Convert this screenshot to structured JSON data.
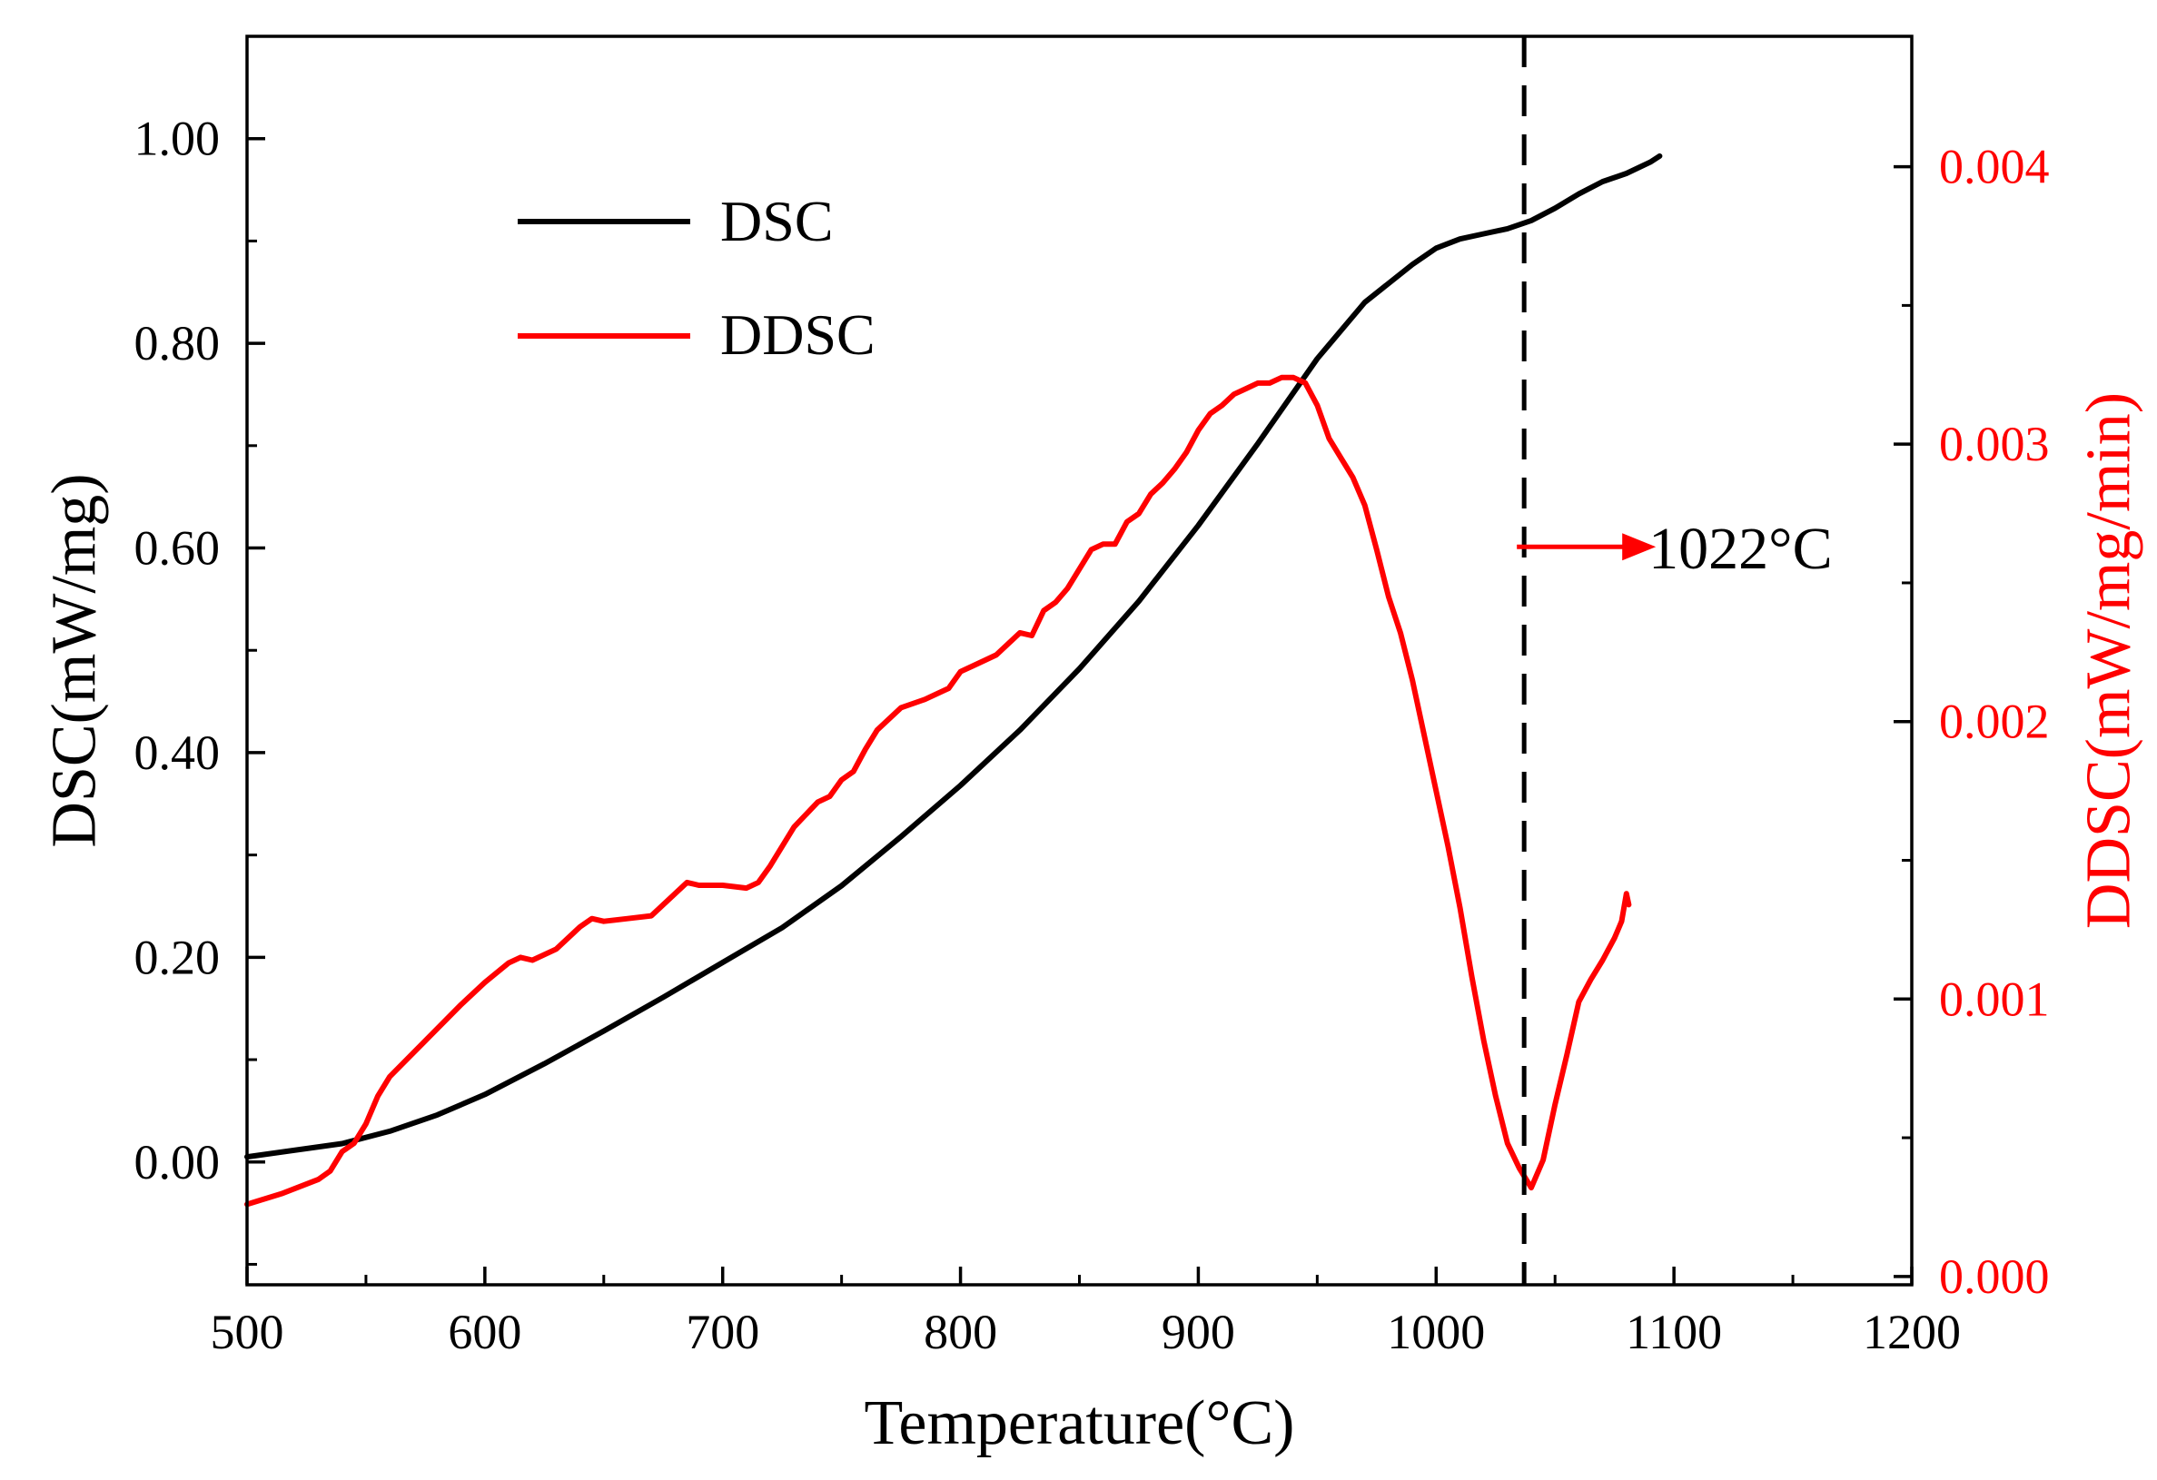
{
  "chart_data": {
    "type": "line",
    "xlabel": "Temperature(°C)",
    "ylabel_left": "DSC(mW/mg)",
    "ylabel_right": "DDSC(mW/mg/min)",
    "xlim": [
      500,
      1200
    ],
    "ylim_left": [
      -0.12,
      1.1
    ],
    "ylim_right": [
      -3e-05,
      0.00447
    ],
    "x_ticks": [
      "500",
      "600",
      "700",
      "800",
      "900",
      "1000",
      "1100",
      "1200"
    ],
    "y_left_ticks": [
      "0.00",
      "0.20",
      "0.40",
      "0.60",
      "0.80",
      "1.00"
    ],
    "y_right_ticks": [
      "0.000",
      "0.001",
      "0.002",
      "0.003",
      "0.004"
    ],
    "grid": false,
    "legend_position": "top-left",
    "colors": {
      "DSC": "#000000",
      "DDSC": "#ff0000",
      "annotation": "#ff0000"
    },
    "series": [
      {
        "name": "DSC",
        "axis": "left",
        "color": "#000000",
        "x": [
          500,
          540,
          560,
          580,
          600,
          625,
          650,
          675,
          700,
          725,
          750,
          775,
          800,
          825,
          850,
          875,
          900,
          925,
          950,
          970,
          990,
          1000,
          1010,
          1020,
          1030,
          1040,
          1050,
          1060,
          1070,
          1080,
          1090,
          1094
        ],
        "y": [
          0.005,
          0.018,
          0.03,
          0.046,
          0.066,
          0.096,
          0.128,
          0.161,
          0.195,
          0.229,
          0.27,
          0.318,
          0.368,
          0.422,
          0.482,
          0.548,
          0.622,
          0.702,
          0.785,
          0.84,
          0.877,
          0.893,
          0.902,
          0.907,
          0.912,
          0.92,
          0.932,
          0.946,
          0.958,
          0.966,
          0.977,
          0.983
        ]
      },
      {
        "name": "DDSC",
        "axis": "right",
        "color": "#ff0000",
        "x": [
          500,
          515,
          530,
          535,
          540,
          545,
          550,
          555,
          560,
          575,
          590,
          600,
          610,
          615,
          620,
          630,
          640,
          645,
          650,
          660,
          670,
          680,
          685,
          690,
          700,
          710,
          715,
          720,
          725,
          730,
          740,
          745,
          750,
          755,
          760,
          765,
          770,
          775,
          785,
          795,
          800,
          805,
          810,
          815,
          820,
          825,
          830,
          835,
          840,
          845,
          850,
          855,
          860,
          865,
          870,
          875,
          880,
          885,
          890,
          895,
          900,
          905,
          910,
          915,
          920,
          925,
          930,
          935,
          940,
          945,
          950,
          955,
          960,
          965,
          970,
          975,
          980,
          985,
          990,
          995,
          1000,
          1005,
          1010,
          1015,
          1020,
          1025,
          1030,
          1035,
          1040,
          1045,
          1050,
          1055,
          1060,
          1065,
          1070,
          1075,
          1078,
          1080,
          1081
        ],
        "y": [
          0.00026,
          0.0003,
          0.00035,
          0.00038,
          0.00045,
          0.00048,
          0.00055,
          0.00065,
          0.00072,
          0.00085,
          0.00098,
          0.00106,
          0.00113,
          0.00115,
          0.00114,
          0.00118,
          0.00126,
          0.00129,
          0.00128,
          0.00129,
          0.0013,
          0.00138,
          0.00142,
          0.00141,
          0.00141,
          0.0014,
          0.00142,
          0.00148,
          0.00155,
          0.00162,
          0.00171,
          0.00173,
          0.00179,
          0.00182,
          0.0019,
          0.00197,
          0.00201,
          0.00205,
          0.00208,
          0.00212,
          0.00218,
          0.0022,
          0.00222,
          0.00224,
          0.00228,
          0.00232,
          0.00231,
          0.0024,
          0.00243,
          0.00248,
          0.00255,
          0.00262,
          0.00264,
          0.00264,
          0.00272,
          0.00275,
          0.00282,
          0.00286,
          0.00291,
          0.00297,
          0.00305,
          0.00311,
          0.00314,
          0.00318,
          0.0032,
          0.00322,
          0.00322,
          0.00324,
          0.00324,
          0.00322,
          0.00314,
          0.00302,
          0.00295,
          0.00288,
          0.00278,
          0.00262,
          0.00245,
          0.00232,
          0.00215,
          0.00195,
          0.00175,
          0.00155,
          0.00133,
          0.00108,
          0.00085,
          0.00065,
          0.00048,
          0.00039,
          0.00032,
          0.00042,
          0.00062,
          0.0008,
          0.00099,
          0.00107,
          0.00114,
          0.00122,
          0.00128,
          0.00138,
          0.00134
        ]
      }
    ],
    "reference_line": {
      "x": 1037,
      "style": "dashed",
      "color": "#000000"
    },
    "annotation": {
      "text": "1022°C",
      "y_right": 0.00263
    }
  }
}
